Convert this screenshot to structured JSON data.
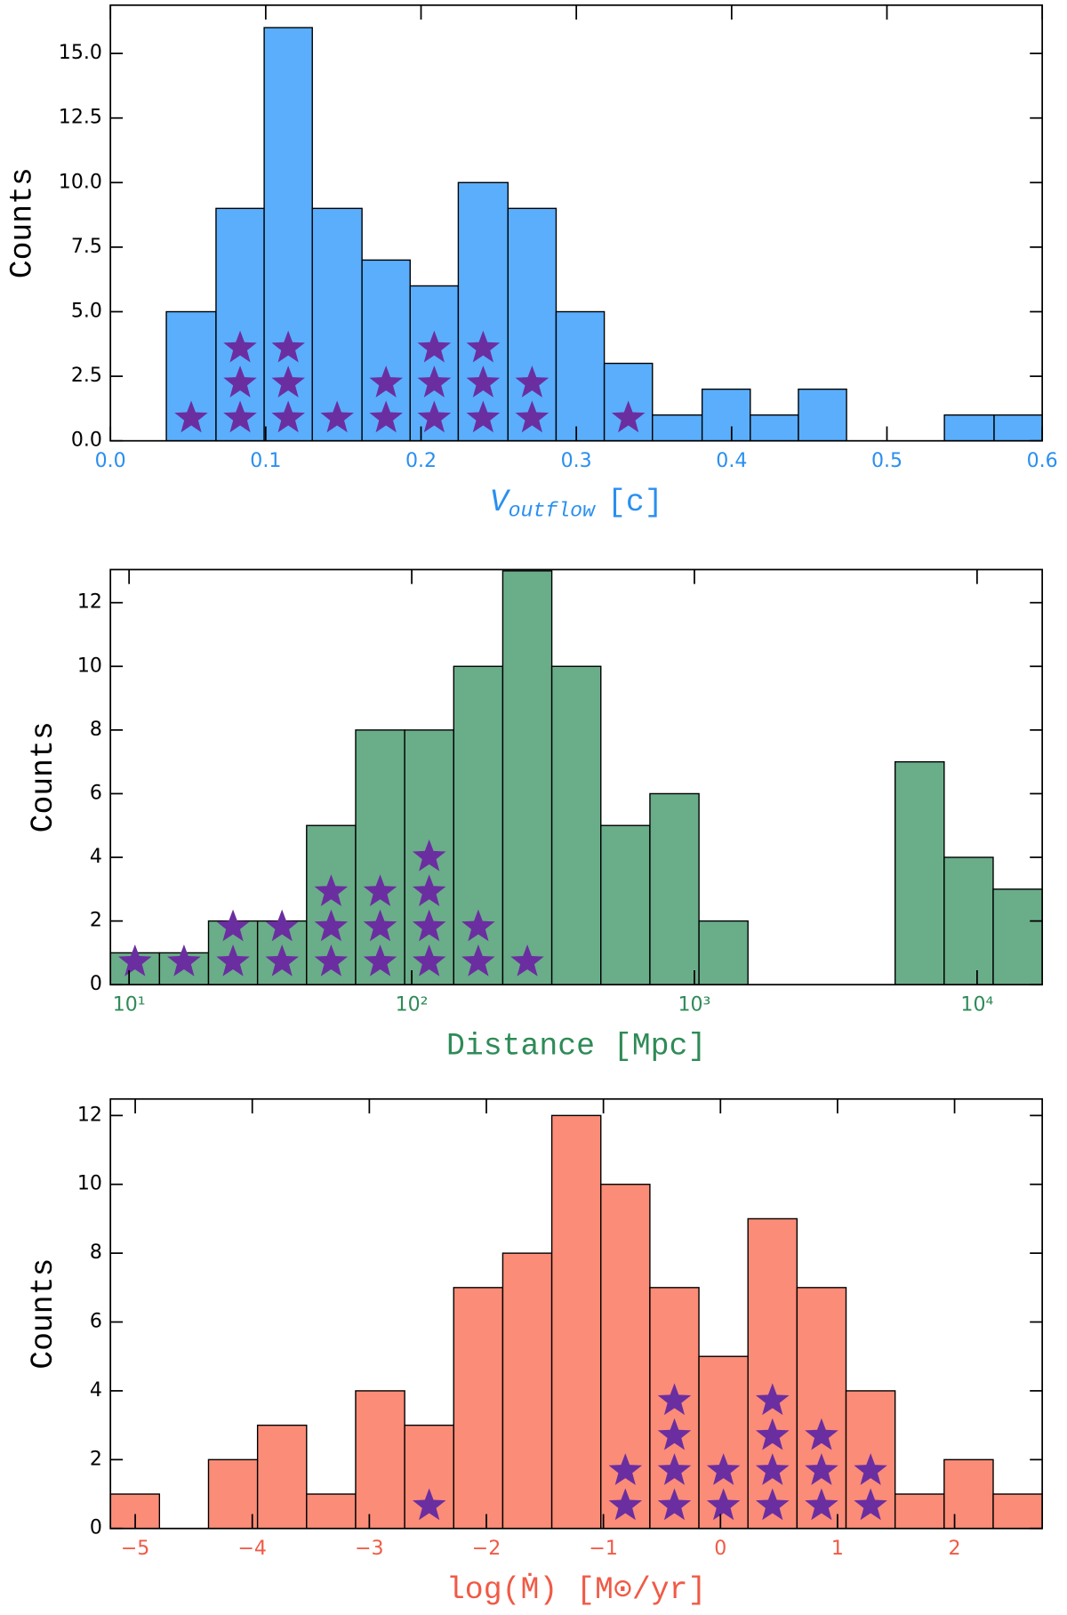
{
  "chart_data": [
    {
      "type": "histogram",
      "y_label": "Counts",
      "x_label": "V",
      "x_label_sub": "outflow",
      "x_label_unit": "[c]",
      "color": "#5aaefc",
      "axis_color": "#2a8ff0",
      "star_color": "#6b2ea0",
      "xscale": "linear",
      "bins": [
        0.036,
        0.068,
        0.099,
        0.13,
        0.162,
        0.193,
        0.224,
        0.256,
        0.287,
        0.318,
        0.349,
        0.381,
        0.412,
        0.443,
        0.474,
        0.506,
        0.537,
        0.569,
        0.6
      ],
      "counts": [
        5,
        9,
        16,
        9,
        7,
        6,
        10,
        9,
        5,
        3,
        1,
        2,
        1,
        2,
        0,
        0,
        1,
        1
      ],
      "star_counts": [
        1,
        3,
        3,
        1,
        2,
        3,
        3,
        2,
        0,
        1,
        0,
        0,
        0,
        0,
        0,
        0,
        0,
        0
      ],
      "xlim": [
        0,
        0.6
      ],
      "ylim": [
        0,
        16.87
      ],
      "xticks": [
        {
          "value": 0,
          "label": "0.0"
        },
        0.1,
        0.2,
        0.3,
        0.4,
        0.5,
        0.6
      ],
      "yticks": [
        {
          "value": 0,
          "label": "0.0"
        },
        2.5,
        {
          "value": 5,
          "label": "5.0"
        },
        7.5,
        {
          "value": 10,
          "label": "10.0"
        },
        12.5,
        {
          "value": 15,
          "label": "15.0"
        }
      ]
    },
    {
      "type": "histogram",
      "y_label": "Counts",
      "x_label": "Distance [Mpc]",
      "color": "#6aad89",
      "axis_color": "#2e8b57",
      "star_color": "#6b2ea0",
      "xscale": "log",
      "bins": [
        8.59,
        12.81,
        19.1,
        28.48,
        42.46,
        63.33,
        94.41,
        140.8,
        209.9,
        313.0,
        466.7,
        696.0,
        1038,
        1547,
        2307,
        3440,
        5129,
        7648,
        11402,
        17003
      ],
      "counts": [
        1,
        1,
        2,
        2,
        5,
        8,
        8,
        10,
        13,
        10,
        5,
        6,
        2,
        0,
        0,
        0,
        7,
        4,
        3
      ],
      "star_counts": [
        1,
        1,
        2,
        2,
        3,
        3,
        4,
        2,
        1,
        0,
        0,
        0,
        0,
        0,
        0,
        0,
        0,
        0,
        0
      ],
      "xlim": [
        8.59,
        17003
      ],
      "ylim": [
        0,
        13.04
      ],
      "xticks": [
        {
          "value": 10,
          "label": "10¹"
        },
        {
          "value": 100,
          "label": "10²"
        },
        {
          "value": 1000,
          "label": "10³"
        },
        {
          "value": 10000,
          "label": "10⁴"
        }
      ],
      "yticks": [
        0,
        2,
        4,
        6,
        8,
        10,
        12
      ]
    },
    {
      "type": "histogram",
      "y_label": "Counts",
      "x_label": "log(Ṁ) [M⊙/yr]",
      "color": "#fa8c78",
      "axis_color": "#f05a46",
      "star_color": "#6b2ea0",
      "xscale": "linear",
      "bins": [
        -5.212,
        -4.793,
        -4.374,
        -3.955,
        -3.536,
        -3.117,
        -2.698,
        -2.279,
        -1.86,
        -1.441,
        -1.022,
        -0.603,
        -0.184,
        0.235,
        0.654,
        1.073,
        1.492,
        1.911,
        2.33,
        2.749
      ],
      "counts": [
        1,
        0,
        2,
        3,
        1,
        4,
        3,
        7,
        8,
        12,
        10,
        7,
        5,
        9,
        7,
        4,
        1,
        2,
        1
      ],
      "star_counts": [
        0,
        0,
        0,
        0,
        0,
        0,
        1,
        0,
        0,
        0,
        2,
        4,
        2,
        4,
        3,
        2,
        0,
        0,
        0
      ],
      "xlim": [
        -5.212,
        2.749
      ],
      "ylim": [
        0,
        12.48
      ],
      "xticks": [
        {
          "value": -5,
          "label": "−5"
        },
        {
          "value": -4,
          "label": "−4"
        },
        {
          "value": -3,
          "label": "−3"
        },
        {
          "value": -2,
          "label": "−2"
        },
        {
          "value": -1,
          "label": "−1"
        },
        0,
        1,
        2
      ],
      "yticks": [
        0,
        2,
        4,
        6,
        8,
        10,
        12
      ]
    }
  ]
}
